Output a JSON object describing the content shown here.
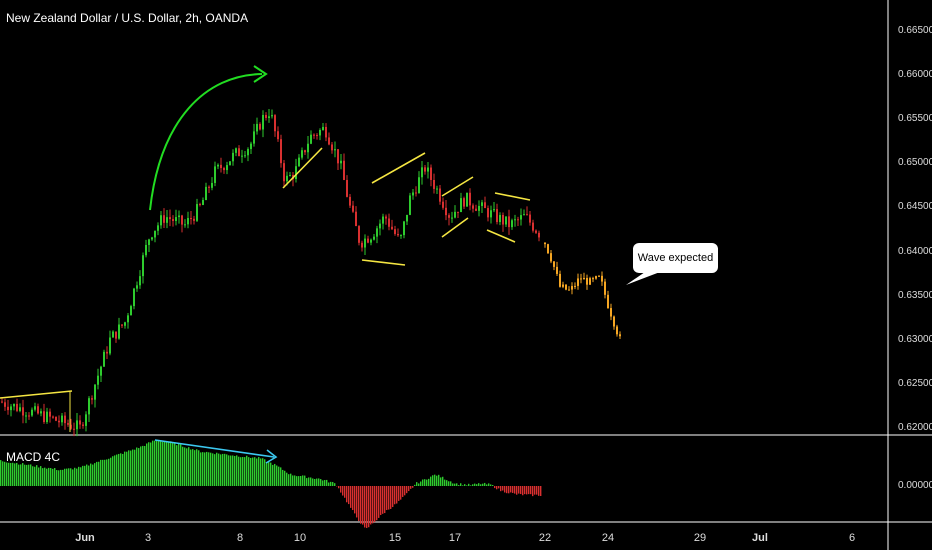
{
  "header": {
    "title": "New Zealand Dollar / U.S. Dollar, 2h, OANDA"
  },
  "indicator": {
    "label": "MACD 4C"
  },
  "annotation": {
    "callout": "Wave expected"
  },
  "colors": {
    "background": "#000000",
    "bull": "#2ecc2e",
    "bear": "#d93030",
    "projection": "#f5a623",
    "pattern_lines": "#f5e642",
    "arrow_green": "#22dd22",
    "arrow_blue": "#3cc8f0"
  },
  "chart_data": {
    "type": "candlestick",
    "title": "New Zealand Dollar / U.S. Dollar, 2h, OANDA",
    "price_axis": {
      "ticks": [
        "0.66500",
        "0.66000",
        "0.65500",
        "0.65000",
        "0.64500",
        "0.64000",
        "0.63500",
        "0.63000",
        "0.62500",
        "0.62000"
      ],
      "range": [
        0.619,
        0.667
      ]
    },
    "macd_axis": {
      "ticks": [
        "0.00000"
      ]
    },
    "time_axis": {
      "ticks": [
        {
          "label": "Jun",
          "month": true
        },
        {
          "label": "3",
          "month": false
        },
        {
          "label": "8",
          "month": false
        },
        {
          "label": "10",
          "month": false
        },
        {
          "label": "15",
          "month": false
        },
        {
          "label": "17",
          "month": false
        },
        {
          "label": "22",
          "month": false
        },
        {
          "label": "24",
          "month": false
        },
        {
          "label": "29",
          "month": false
        },
        {
          "label": "Jul",
          "month": true
        },
        {
          "label": "6",
          "month": false
        }
      ]
    },
    "price_path": [
      [
        0,
        0.623
      ],
      [
        40,
        0.6215
      ],
      [
        80,
        0.62
      ],
      [
        95,
        0.625
      ],
      [
        110,
        0.63
      ],
      [
        125,
        0.632
      ],
      [
        140,
        0.638
      ],
      [
        150,
        0.642
      ],
      [
        165,
        0.644
      ],
      [
        185,
        0.643
      ],
      [
        200,
        0.645
      ],
      [
        215,
        0.649
      ],
      [
        235,
        0.651
      ],
      [
        250,
        0.652
      ],
      [
        262,
        0.655
      ],
      [
        270,
        0.656
      ],
      [
        278,
        0.652
      ],
      [
        285,
        0.648
      ],
      [
        295,
        0.649
      ],
      [
        310,
        0.653
      ],
      [
        325,
        0.654
      ],
      [
        340,
        0.65
      ],
      [
        350,
        0.645
      ],
      [
        360,
        0.641
      ],
      [
        372,
        0.642
      ],
      [
        385,
        0.644
      ],
      [
        400,
        0.641
      ],
      [
        410,
        0.646
      ],
      [
        425,
        0.6495
      ],
      [
        437,
        0.647
      ],
      [
        450,
        0.644
      ],
      [
        465,
        0.646
      ],
      [
        480,
        0.645
      ],
      [
        495,
        0.644
      ],
      [
        510,
        0.643
      ],
      [
        525,
        0.644
      ],
      [
        540,
        0.642
      ]
    ],
    "projection_path": [
      [
        545,
        0.641
      ],
      [
        552,
        0.639
      ],
      [
        560,
        0.636
      ],
      [
        570,
        0.6355
      ],
      [
        580,
        0.637
      ],
      [
        590,
        0.6365
      ],
      [
        600,
        0.637
      ],
      [
        608,
        0.634
      ],
      [
        614,
        0.632
      ],
      [
        620,
        0.63
      ]
    ],
    "macd_histogram": [
      [
        0,
        0.55
      ],
      [
        30,
        0.45
      ],
      [
        60,
        0.35
      ],
      [
        80,
        0.4
      ],
      [
        100,
        0.55
      ],
      [
        120,
        0.7
      ],
      [
        140,
        0.85
      ],
      [
        155,
        1.0
      ],
      [
        170,
        0.95
      ],
      [
        185,
        0.85
      ],
      [
        200,
        0.75
      ],
      [
        220,
        0.7
      ],
      [
        240,
        0.65
      ],
      [
        260,
        0.6
      ],
      [
        275,
        0.45
      ],
      [
        290,
        0.25
      ],
      [
        305,
        0.2
      ],
      [
        320,
        0.15
      ],
      [
        335,
        0.05
      ],
      [
        345,
        -0.3
      ],
      [
        355,
        -0.65
      ],
      [
        365,
        -0.95
      ],
      [
        375,
        -0.75
      ],
      [
        385,
        -0.55
      ],
      [
        395,
        -0.4
      ],
      [
        405,
        -0.2
      ],
      [
        415,
        0.05
      ],
      [
        425,
        0.15
      ],
      [
        435,
        0.25
      ],
      [
        445,
        0.15
      ],
      [
        455,
        0.05
      ],
      [
        470,
        0.02
      ],
      [
        480,
        0.05
      ],
      [
        490,
        0.03
      ],
      [
        500,
        -0.1
      ],
      [
        515,
        -0.18
      ],
      [
        530,
        -0.2
      ],
      [
        541,
        -0.2
      ]
    ]
  }
}
